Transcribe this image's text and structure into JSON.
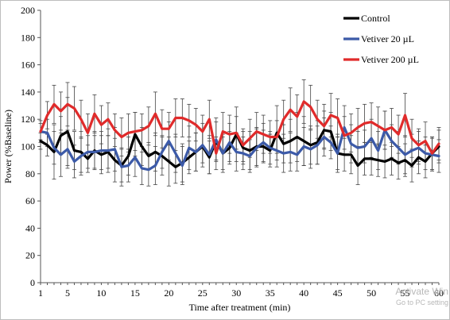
{
  "chart_data": {
    "type": "line",
    "title": "",
    "xlabel": "Time after treatment (min)",
    "ylabel": "Power (%Baseline)",
    "xlim": [
      1,
      60
    ],
    "ylim": [
      0,
      200
    ],
    "xticks": [
      1,
      5,
      10,
      15,
      20,
      25,
      30,
      35,
      40,
      45,
      50,
      55,
      60
    ],
    "yticks": [
      0,
      20,
      40,
      60,
      80,
      100,
      120,
      140,
      160,
      180,
      200
    ],
    "grid": false,
    "legend_position": "top-right",
    "x": [
      1,
      2,
      3,
      4,
      5,
      6,
      7,
      8,
      9,
      10,
      11,
      12,
      13,
      14,
      15,
      16,
      17,
      18,
      19,
      20,
      21,
      22,
      23,
      24,
      25,
      26,
      27,
      28,
      29,
      30,
      31,
      32,
      33,
      34,
      35,
      36,
      37,
      38,
      39,
      40,
      41,
      42,
      43,
      44,
      45,
      46,
      47,
      48,
      49,
      50,
      51,
      52,
      53,
      54,
      55,
      56,
      57,
      58,
      59,
      60
    ],
    "series": [
      {
        "name": "Control",
        "color": "#000000",
        "values": [
          104,
          101,
          96,
          108,
          111,
          97,
          96,
          91,
          97,
          94,
          96,
          90,
          86,
          93,
          109,
          100,
          93,
          96,
          93,
          89,
          85,
          88,
          92,
          96,
          100,
          92,
          104,
          95,
          99,
          109,
          99,
          97,
          100,
          100,
          97,
          110,
          102,
          104,
          107,
          104,
          101,
          103,
          112,
          111,
          95,
          94,
          94,
          86,
          91,
          91,
          90,
          89,
          91,
          88,
          90,
          86,
          92,
          89,
          95,
          100
        ],
        "err": [
          6,
          8,
          20,
          14,
          25,
          14,
          15,
          10,
          14,
          14,
          12,
          16,
          12,
          14,
          16,
          14,
          10,
          14,
          14,
          18,
          12,
          14,
          12,
          14,
          12,
          12,
          14,
          14,
          12,
          20,
          12,
          14,
          14,
          12,
          12,
          20,
          14,
          16,
          18,
          18,
          14,
          16,
          14,
          14,
          12,
          12,
          14,
          14,
          12,
          12,
          12,
          12,
          12,
          12,
          12,
          12,
          12,
          12,
          12,
          12
        ]
      },
      {
        "name": "Vetiver 20 µL",
        "color": "#3c5aa8",
        "values": [
          111,
          110,
          99,
          94,
          98,
          89,
          93,
          96,
          96,
          97,
          97,
          98,
          85,
          86,
          92,
          84,
          83,
          86,
          96,
          104,
          95,
          86,
          99,
          96,
          101,
          94,
          105,
          95,
          103,
          96,
          95,
          93,
          99,
          103,
          99,
          97,
          95,
          96,
          94,
          100,
          98,
          101,
          107,
          103,
          95,
          114,
          102,
          99,
          100,
          106,
          97,
          112,
          104,
          99,
          94,
          97,
          99,
          95,
          94,
          93
        ],
        "err": [
          8,
          10,
          12,
          16,
          14,
          12,
          14,
          12,
          12,
          14,
          16,
          16,
          14,
          12,
          14,
          12,
          12,
          14,
          12,
          14,
          14,
          14,
          16,
          14,
          16,
          14,
          16,
          12,
          14,
          14,
          12,
          12,
          14,
          14,
          12,
          12,
          14,
          14,
          12,
          14,
          14,
          14,
          14,
          12,
          14,
          16,
          14,
          12,
          12,
          14,
          14,
          14,
          12,
          12,
          14,
          12,
          12,
          12,
          12,
          12
        ]
      },
      {
        "name": "Vetiver 200 µL",
        "color": "#e02b2b",
        "values": [
          111,
          123,
          131,
          126,
          131,
          128,
          120,
          110,
          124,
          116,
          120,
          112,
          107,
          110,
          111,
          112,
          115,
          124,
          113,
          113,
          121,
          121,
          119,
          116,
          111,
          120,
          95,
          111,
          109,
          110,
          101,
          106,
          111,
          109,
          107,
          107,
          120,
          127,
          122,
          133,
          129,
          120,
          115,
          123,
          121,
          108,
          110,
          114,
          117,
          118,
          115,
          112,
          114,
          109,
          123,
          106,
          101,
          104,
          95,
          102
        ],
        "err": [
          6,
          10,
          14,
          14,
          16,
          16,
          14,
          14,
          14,
          14,
          12,
          12,
          14,
          14,
          14,
          12,
          14,
          16,
          14,
          12,
          14,
          14,
          12,
          12,
          12,
          14,
          12,
          14,
          14,
          12,
          12,
          14,
          14,
          14,
          12,
          12,
          14,
          16,
          16,
          16,
          16,
          14,
          16,
          16,
          14,
          14,
          14,
          14,
          14,
          14,
          14,
          14,
          14,
          14,
          16,
          14,
          12,
          14,
          12,
          12
        ]
      }
    ]
  },
  "watermark": {
    "line1": "Activate Win",
    "line2": "Go to PC setting"
  }
}
